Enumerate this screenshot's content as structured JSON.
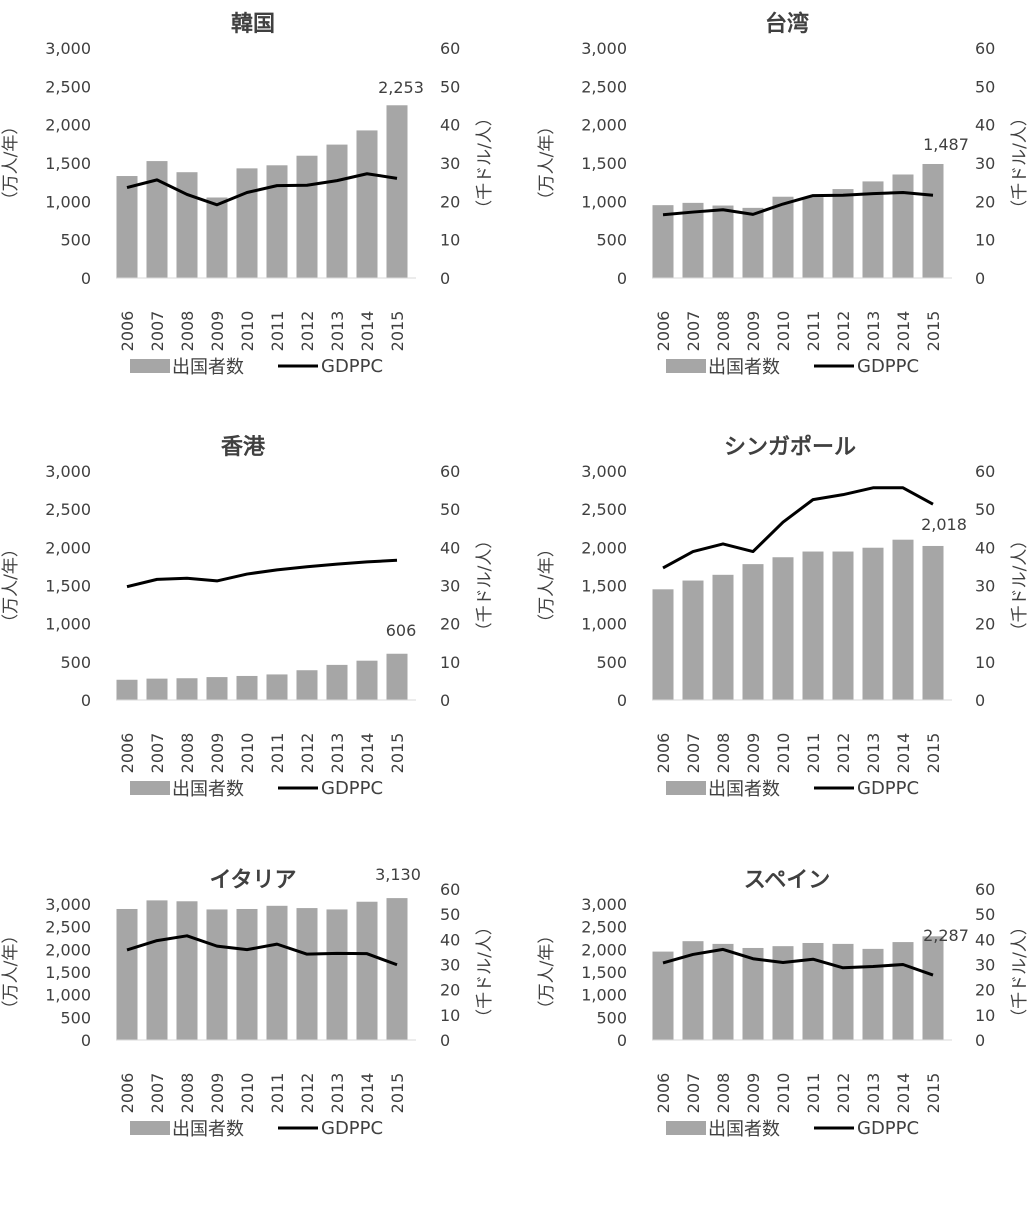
{
  "colors": {
    "bar": "#a6a6a6",
    "line": "#000000",
    "text": "#404040"
  },
  "chart_data": [
    {
      "type": "bar+line",
      "title": "韓国",
      "categories": [
        "2006",
        "2007",
        "2008",
        "2009",
        "2010",
        "2011",
        "2012",
        "2013",
        "2014",
        "2015"
      ],
      "ylabel_left": "（万人/年）",
      "ylabel_right": "（千ドル/人）",
      "ylim_left": [
        0,
        3000
      ],
      "ylim_right": [
        0,
        60
      ],
      "left_ticks": [
        "0",
        "500",
        "1,000",
        "1,500",
        "2,000",
        "2,500",
        "3,000"
      ],
      "right_ticks": [
        "0",
        "10",
        "20",
        "30",
        "40",
        "50",
        "60"
      ],
      "series": [
        {
          "name": "出国者数",
          "type": "bar",
          "axis": "left",
          "values": [
            1330,
            1525,
            1380,
            1050,
            1430,
            1470,
            1595,
            1740,
            1925,
            2253
          ]
        },
        {
          "name": "GDPPC",
          "type": "line",
          "axis": "right",
          "values": [
            23.6,
            25.6,
            21.8,
            19.1,
            22.3,
            24.1,
            24.2,
            25.4,
            27.2,
            26.0
          ]
        }
      ],
      "data_label": "2,253",
      "legend": "bottom"
    },
    {
      "type": "bar+line",
      "title": "台湾",
      "categories": [
        "2006",
        "2007",
        "2008",
        "2009",
        "2010",
        "2011",
        "2012",
        "2013",
        "2014",
        "2015"
      ],
      "ylabel_left": "（万人/年）",
      "ylabel_right": "（千ドル/人）",
      "ylim_left": [
        0,
        3000
      ],
      "ylim_right": [
        0,
        60
      ],
      "left_ticks": [
        "0",
        "500",
        "1,000",
        "1,500",
        "2,000",
        "2,500",
        "3,000"
      ],
      "right_ticks": [
        "0",
        "10",
        "20",
        "30",
        "40",
        "50",
        "60"
      ],
      "series": [
        {
          "name": "出国者数",
          "type": "bar",
          "axis": "left",
          "values": [
            950,
            980,
            945,
            915,
            1060,
            1055,
            1160,
            1260,
            1350,
            1487
          ]
        },
        {
          "name": "GDPPC",
          "type": "line",
          "axis": "right",
          "values": [
            16.5,
            17.2,
            17.8,
            16.6,
            19.3,
            21.5,
            21.6,
            22.0,
            22.3,
            21.6
          ]
        }
      ],
      "data_label": "1,487",
      "legend": "bottom"
    },
    {
      "type": "bar+line",
      "title": "香港",
      "categories": [
        "2006",
        "2007",
        "2008",
        "2009",
        "2010",
        "2011",
        "2012",
        "2013",
        "2014",
        "2015"
      ],
      "ylabel_left": "（万人/年）",
      "ylabel_right": "（千ドル/人）",
      "ylim_left": [
        0,
        3000
      ],
      "ylim_right": [
        0,
        60
      ],
      "left_ticks": [
        "0",
        "500",
        "1,000",
        "1,500",
        "2,000",
        "2,500",
        "3,000"
      ],
      "right_ticks": [
        "0",
        "10",
        "20",
        "30",
        "40",
        "50",
        "60"
      ],
      "series": [
        {
          "name": "出国者数",
          "type": "bar",
          "axis": "left",
          "values": [
            265,
            280,
            285,
            300,
            315,
            335,
            390,
            460,
            515,
            606
          ]
        },
        {
          "name": "GDPPC",
          "type": "line",
          "axis": "right",
          "values": [
            29.7,
            31.6,
            31.9,
            31.2,
            33.0,
            34.1,
            34.9,
            35.6,
            36.2,
            36.6
          ]
        }
      ],
      "data_label": "606",
      "legend": "bottom"
    },
    {
      "type": "bar+line",
      "title": "シンガポール",
      "categories": [
        "2006",
        "2007",
        "2008",
        "2009",
        "2010",
        "2011",
        "2012",
        "2013",
        "2014",
        "2015"
      ],
      "ylabel_left": "（万人/年）",
      "ylabel_right": "（千ドル/人）",
      "ylim_left": [
        0,
        3000
      ],
      "ylim_right": [
        0,
        60
      ],
      "left_ticks": [
        "0",
        "500",
        "1,000",
        "1,500",
        "2,000",
        "2,500",
        "3,000"
      ],
      "right_ticks": [
        "0",
        "10",
        "20",
        "30",
        "40",
        "50",
        "60"
      ],
      "series": [
        {
          "name": "出国者数",
          "type": "bar",
          "axis": "left",
          "values": [
            1450,
            1565,
            1640,
            1780,
            1870,
            1945,
            1945,
            1995,
            2100,
            2018
          ]
        },
        {
          "name": "GDPPC",
          "type": "line",
          "axis": "right",
          "values": [
            34.6,
            38.9,
            40.9,
            38.9,
            46.6,
            52.5,
            53.8,
            55.6,
            55.6,
            51.3
          ]
        }
      ],
      "data_label": "2,018",
      "legend": "bottom"
    },
    {
      "type": "bar+line",
      "title": "イタリア",
      "categories": [
        "2006",
        "2007",
        "2008",
        "2009",
        "2010",
        "2011",
        "2012",
        "2013",
        "2014",
        "2015"
      ],
      "ylabel_left": "（万人/年）",
      "ylabel_right": "（千ドル/人）",
      "ylim_left": [
        0,
        3000
      ],
      "ylim_right": [
        0,
        60
      ],
      "left_ticks": [
        "0",
        "500",
        "1,000",
        "1,500",
        "2,000",
        "2,500",
        "3,000"
      ],
      "right_ticks": [
        "0",
        "10",
        "20",
        "30",
        "40",
        "50",
        "60"
      ],
      "series": [
        {
          "name": "出国者数",
          "type": "bar",
          "axis": "left",
          "values": [
            2890,
            3080,
            3060,
            2880,
            2890,
            2960,
            2910,
            2880,
            3050,
            3130
          ]
        },
        {
          "name": "GDPPC",
          "type": "line",
          "axis": "right",
          "values": [
            35.8,
            39.5,
            41.4,
            37.3,
            35.9,
            38.1,
            34.1,
            34.4,
            34.3,
            29.9
          ]
        }
      ],
      "data_label": "3,130",
      "legend": "bottom"
    },
    {
      "type": "bar+line",
      "title": "スペイン",
      "categories": [
        "2006",
        "2007",
        "2008",
        "2009",
        "2010",
        "2011",
        "2012",
        "2013",
        "2014",
        "2015"
      ],
      "ylabel_left": "（万人/年）",
      "ylabel_right": "（千ドル/人）",
      "ylim_left": [
        0,
        3000
      ],
      "ylim_right": [
        0,
        60
      ],
      "left_ticks": [
        "0",
        "500",
        "1,000",
        "1,500",
        "2,000",
        "2,500",
        "3,000"
      ],
      "right_ticks": [
        "0",
        "10",
        "20",
        "30",
        "40",
        "50",
        "60"
      ],
      "series": [
        {
          "name": "出国者数",
          "type": "bar",
          "axis": "left",
          "values": [
            1950,
            2180,
            2120,
            2030,
            2070,
            2140,
            2120,
            2010,
            2160,
            2287
          ]
        },
        {
          "name": "GDPPC",
          "type": "line",
          "axis": "right",
          "values": [
            30.6,
            34.0,
            36.0,
            32.3,
            30.8,
            32.1,
            28.7,
            29.2,
            30.0,
            25.8
          ]
        }
      ],
      "data_label": "2,287",
      "legend": "bottom"
    }
  ]
}
